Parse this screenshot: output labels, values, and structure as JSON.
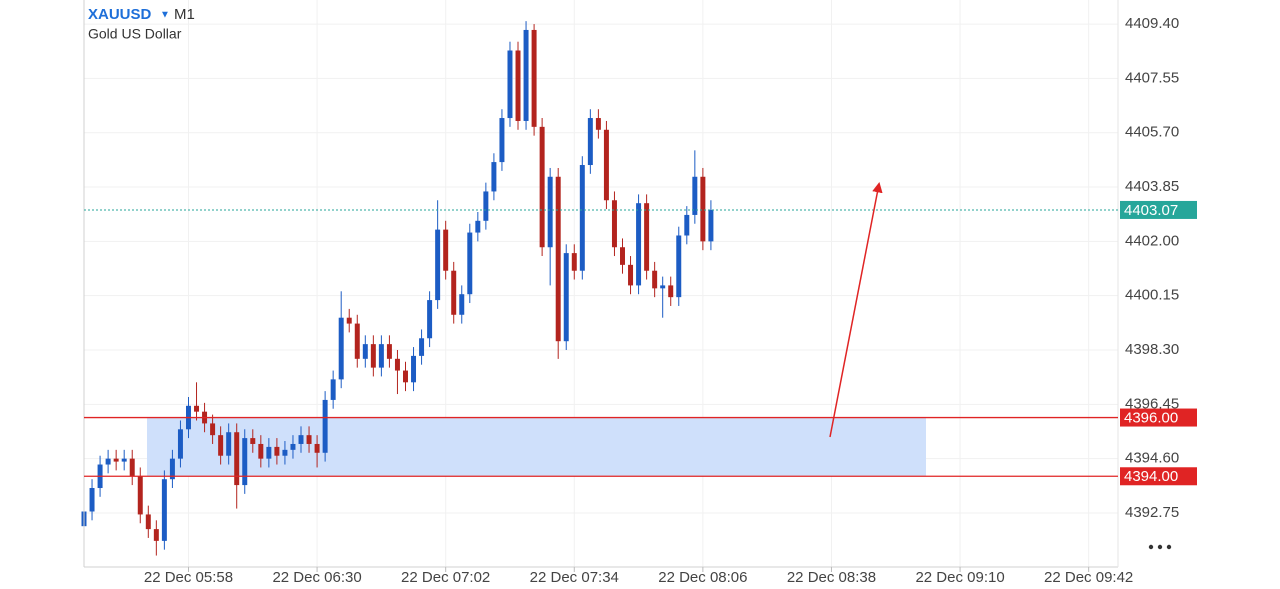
{
  "chart_data": {
    "type": "candlestick",
    "symbol": "XAUUSD",
    "timeframe": "M1",
    "subtitle": "Gold US Dollar",
    "up_color": "#1c5cc4",
    "down_color": "#b3241e",
    "grid": true,
    "x": [
      332,
      334,
      336,
      338,
      340,
      342,
      344,
      346,
      348,
      350,
      352,
      354,
      356,
      358,
      360,
      362,
      364,
      366,
      368,
      370,
      372,
      374,
      376,
      378,
      380,
      382,
      384,
      386,
      388,
      390,
      392,
      394,
      396,
      398,
      400,
      402,
      404,
      406,
      408,
      410,
      412,
      414,
      416,
      418,
      420,
      422,
      424,
      426,
      428,
      430,
      432,
      434,
      436,
      438,
      440,
      442,
      444,
      446,
      448,
      450,
      452,
      454,
      456,
      458,
      460,
      462,
      464,
      466,
      468,
      470,
      472,
      474,
      476,
      478,
      480,
      482,
      484,
      486,
      488
    ],
    "open": [
      4392.3,
      4392.8,
      4393.6,
      4394.4,
      4394.6,
      4394.5,
      4394.6,
      4394.0,
      4392.7,
      4392.2,
      4391.8,
      4393.9,
      4394.6,
      4395.6,
      4396.4,
      4396.2,
      4395.8,
      4395.4,
      4394.7,
      4395.5,
      4393.7,
      4395.3,
      4395.1,
      4394.6,
      4395.0,
      4394.7,
      4394.9,
      4395.1,
      4395.4,
      4395.1,
      4394.8,
      4396.6,
      4397.3,
      4399.4,
      4399.2,
      4398.0,
      4398.5,
      4397.7,
      4398.5,
      4398.0,
      4397.6,
      4397.2,
      4398.1,
      4398.7,
      4400.0,
      4402.4,
      4401.0,
      4399.5,
      4400.2,
      4402.3,
      4402.7,
      4403.7,
      4404.7,
      4406.2,
      4408.5,
      4406.1,
      4409.2,
      4405.9,
      4401.8,
      4404.2,
      4398.6,
      4401.6,
      4401.0,
      4404.6,
      4406.2,
      4405.8,
      4403.4,
      4401.8,
      4401.2,
      4400.5,
      4403.3,
      4401.0,
      4400.4,
      4400.5,
      4400.1,
      4402.2,
      4402.9,
      4404.2,
      4402.0
    ],
    "high": [
      4393.1,
      4393.9,
      4394.7,
      4394.9,
      4394.9,
      4394.9,
      4394.9,
      4394.3,
      4393.0,
      4392.5,
      4394.2,
      4394.9,
      4395.9,
      4396.7,
      4397.2,
      4396.5,
      4396.1,
      4395.7,
      4395.8,
      4395.8,
      4395.6,
      4395.6,
      4395.4,
      4395.3,
      4395.3,
      4395.2,
      4395.4,
      4395.7,
      4395.7,
      4395.4,
      4396.9,
      4397.6,
      4400.3,
      4399.7,
      4399.5,
      4398.8,
      4398.8,
      4398.8,
      4398.8,
      4398.3,
      4397.9,
      4398.4,
      4399.0,
      4400.3,
      4403.4,
      4402.7,
      4401.3,
      4400.5,
      4402.6,
      4403.0,
      4404.0,
      4405.0,
      4406.5,
      4408.8,
      4408.8,
      4409.5,
      4409.4,
      4406.2,
      4404.5,
      4404.5,
      4401.9,
      4401.9,
      4404.9,
      4406.5,
      4406.5,
      4406.1,
      4403.7,
      4402.1,
      4401.5,
      4403.6,
      4403.6,
      4401.3,
      4400.8,
      4400.8,
      4402.5,
      4403.2,
      4405.1,
      4404.5,
      4403.4
    ],
    "low": [
      4392.0,
      4392.5,
      4393.3,
      4394.1,
      4394.2,
      4394.2,
      4393.7,
      4392.4,
      4391.9,
      4391.3,
      4391.5,
      4393.6,
      4394.3,
      4395.3,
      4395.9,
      4395.5,
      4395.1,
      4394.4,
      4394.4,
      4392.9,
      4393.4,
      4394.8,
      4394.3,
      4394.3,
      4394.4,
      4394.4,
      4394.6,
      4394.8,
      4394.8,
      4394.3,
      4394.5,
      4396.3,
      4397.0,
      4398.9,
      4397.7,
      4397.7,
      4397.4,
      4397.4,
      4397.7,
      4396.8,
      4396.9,
      4396.9,
      4397.8,
      4398.4,
      4399.7,
      4400.7,
      4399.2,
      4399.2,
      4399.9,
      4402.0,
      4402.4,
      4403.4,
      4404.4,
      4405.9,
      4405.8,
      4405.8,
      4405.6,
      4401.5,
      4400.5,
      4398.0,
      4398.3,
      4400.7,
      4400.7,
      4404.3,
      4405.5,
      4403.1,
      4401.5,
      4400.9,
      4400.2,
      4400.2,
      4400.7,
      4400.1,
      4399.4,
      4399.8,
      4399.8,
      4401.9,
      4402.6,
      4401.7,
      4401.7
    ],
    "close": [
      4392.8,
      4393.6,
      4394.4,
      4394.6,
      4394.5,
      4394.6,
      4394.0,
      4392.7,
      4392.2,
      4391.8,
      4393.9,
      4394.6,
      4395.6,
      4396.4,
      4396.2,
      4395.8,
      4395.4,
      4394.7,
      4395.5,
      4393.7,
      4395.3,
      4395.1,
      4394.6,
      4395.0,
      4394.7,
      4394.9,
      4395.1,
      4395.4,
      4395.1,
      4394.8,
      4396.6,
      4397.3,
      4399.4,
      4399.2,
      4398.0,
      4398.5,
      4397.7,
      4398.5,
      4398.0,
      4397.6,
      4397.2,
      4398.1,
      4398.7,
      4400.0,
      4402.4,
      4401.0,
      4399.5,
      4400.2,
      4402.3,
      4402.7,
      4403.7,
      4404.7,
      4406.2,
      4408.5,
      4406.1,
      4409.2,
      4405.9,
      4401.8,
      4404.2,
      4398.6,
      4401.6,
      4401.0,
      4404.6,
      4406.2,
      4405.8,
      4403.4,
      4401.8,
      4401.2,
      4400.5,
      4403.3,
      4401.0,
      4400.4,
      4400.5,
      4400.1,
      4402.2,
      4402.9,
      4404.2,
      4402.0,
      4403.07
    ],
    "xlim": [
      332,
      589.3
    ],
    "xticks": [
      {
        "value": 358,
        "label": "22 Dec 05:58"
      },
      {
        "value": 390,
        "label": "22 Dec 06:30"
      },
      {
        "value": 422,
        "label": "22 Dec 07:02"
      },
      {
        "value": 454,
        "label": "22 Dec 07:34"
      },
      {
        "value": 486,
        "label": "22 Dec 08:06"
      },
      {
        "value": 518,
        "label": "22 Dec 08:38"
      },
      {
        "value": 550,
        "label": "22 Dec 09:10"
      },
      {
        "value": 582,
        "label": "22 Dec 09:42"
      }
    ],
    "ylim": [
      4390.91,
      4410.22
    ],
    "yticks": [
      4392.75,
      {
        "value": 4394.6,
        "label": "4394.60"
      },
      4396.45,
      {
        "value": 4398.3,
        "label": "4398.30"
      },
      4400.15,
      {
        "value": 4402,
        "label": "4402.00"
      },
      4403.85,
      {
        "value": 4405.7,
        "label": "4405.70"
      },
      4407.55,
      {
        "value": 4409.4,
        "label": "4409.40"
      }
    ],
    "last_price": {
      "value": 4403.07,
      "label": "4403.07",
      "color": "#26a69a"
    },
    "levels": [
      {
        "value": 4396,
        "label": "4396.00",
        "color": "#e02424"
      },
      {
        "value": 4394,
        "label": "4394.00",
        "color": "#e02424"
      }
    ],
    "zone_color": "#cfe0fb"
  }
}
